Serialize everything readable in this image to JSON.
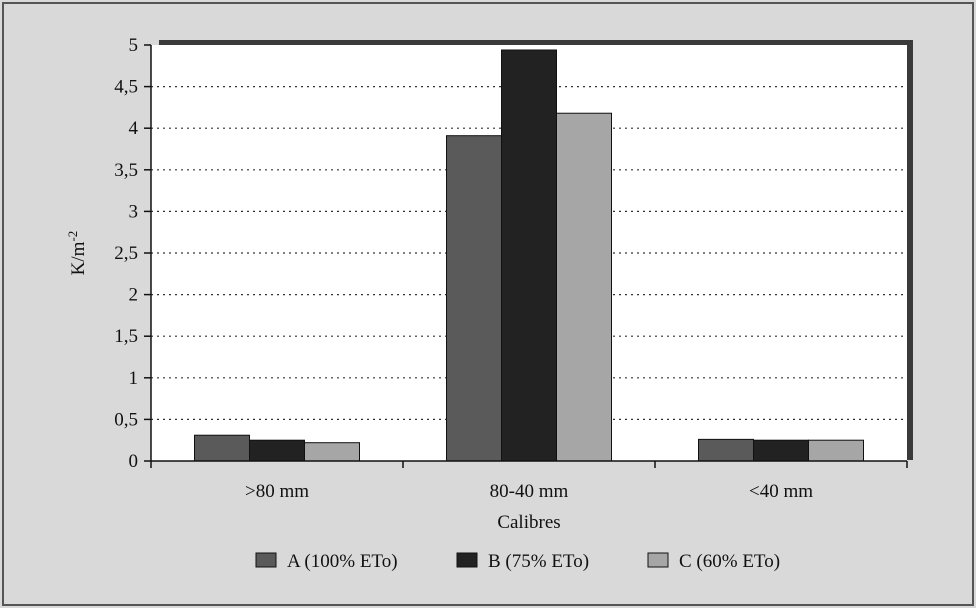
{
  "chart_data": {
    "type": "bar",
    "categories": [
      ">80 mm",
      "80-40 mm",
      "<40 mm"
    ],
    "series": [
      {
        "name": "A (100% ETo)",
        "values": [
          0.31,
          3.91,
          0.26
        ],
        "color": "#5a5a5a"
      },
      {
        "name": "B (75% ETo)",
        "values": [
          0.25,
          4.94,
          0.25
        ],
        "color": "#222222"
      },
      {
        "name": "C (60% ETo)",
        "values": [
          0.22,
          4.18,
          0.25
        ],
        "color": "#a6a6a6"
      }
    ],
    "title": "",
    "xlabel": "Calibres",
    "ylabel": "K/m",
    "ylabel_superscript": "-2",
    "ylim": [
      0,
      5
    ],
    "yticks": [
      "0",
      "0,5",
      "1",
      "1,5",
      "2",
      "2,5",
      "3",
      "3,5",
      "4",
      "4,5",
      "5"
    ],
    "ytick_values": [
      0,
      0.5,
      1,
      1.5,
      2,
      2.5,
      3,
      3.5,
      4,
      4.5,
      5
    ],
    "grid": "horizontal-dotted",
    "legend_position": "bottom"
  }
}
